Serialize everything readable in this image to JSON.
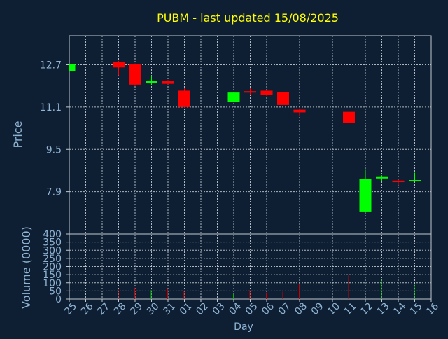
{
  "chart_data": {
    "type": "candlestick",
    "title": "PUBM - last updated 15/08/2025",
    "price_panel": {
      "ylabel": "Price",
      "ylim": [
        6.3,
        13.8
      ],
      "yticks": [
        7.9,
        9.5,
        11.1,
        12.7
      ],
      "ytick_labels": [
        "7.9",
        "9.5",
        "11.1",
        "12.7"
      ],
      "grid": true
    },
    "volume_panel": {
      "ylabel": "Volume (0000)",
      "ylim": [
        0,
        400
      ],
      "yticks": [
        0,
        50,
        100,
        150,
        200,
        250,
        300,
        350,
        400
      ],
      "ytick_labels": [
        "0",
        "50",
        "100",
        "150",
        "200",
        "250",
        "300",
        "350",
        "400"
      ],
      "grid": true
    },
    "xlabel": "Day",
    "x_labels": [
      "25",
      "26",
      "27",
      "28",
      "29",
      "30",
      "31",
      "01",
      "02",
      "03",
      "04",
      "05",
      "06",
      "07",
      "08",
      "09",
      "10",
      "11",
      "12",
      "13",
      "14",
      "15",
      "16"
    ],
    "candles": [
      {
        "day": "25",
        "open": 12.45,
        "close": 12.72,
        "high": 12.72,
        "low": 12.45,
        "volume": 0
      },
      {
        "day": "28",
        "open": 12.82,
        "close": 12.6,
        "high": 12.85,
        "low": 12.3,
        "volume": 60
      },
      {
        "day": "29",
        "open": 12.72,
        "close": 11.95,
        "high": 12.75,
        "low": 11.9,
        "volume": 70
      },
      {
        "day": "30",
        "open": 12.0,
        "close": 12.1,
        "high": 12.3,
        "low": 11.95,
        "volume": 55
      },
      {
        "day": "31",
        "open": 12.1,
        "close": 11.98,
        "high": 12.12,
        "low": 11.95,
        "volume": 65
      },
      {
        "day": "01",
        "open": 11.72,
        "close": 11.1,
        "high": 11.82,
        "low": 11.1,
        "volume": 50
      },
      {
        "day": "04",
        "open": 11.3,
        "close": 11.65,
        "high": 11.68,
        "low": 11.28,
        "volume": 30
      },
      {
        "day": "05",
        "open": 11.7,
        "close": 11.65,
        "high": 11.82,
        "low": 11.55,
        "volume": 55
      },
      {
        "day": "06",
        "open": 11.72,
        "close": 11.55,
        "high": 11.75,
        "low": 11.52,
        "volume": 40
      },
      {
        "day": "07",
        "open": 11.68,
        "close": 11.18,
        "high": 11.7,
        "low": 11.05,
        "volume": 45
      },
      {
        "day": "08",
        "open": 11.0,
        "close": 10.9,
        "high": 11.05,
        "low": 10.75,
        "volume": 90
      },
      {
        "day": "11",
        "open": 10.92,
        "close": 10.5,
        "high": 10.95,
        "low": 10.3,
        "volume": 145
      },
      {
        "day": "12",
        "open": 7.15,
        "close": 8.38,
        "high": 8.75,
        "low": 7.1,
        "volume": 380
      },
      {
        "day": "13",
        "open": 8.4,
        "close": 8.48,
        "high": 8.52,
        "low": 8.3,
        "volume": 120
      },
      {
        "day": "14",
        "open": 8.32,
        "close": 8.26,
        "high": 8.35,
        "low": 8.15,
        "volume": 115
      },
      {
        "day": "15",
        "open": 8.3,
        "close": 8.34,
        "high": 8.62,
        "low": 8.28,
        "volume": 90
      }
    ],
    "grid": true,
    "legend": "none"
  },
  "colors": {
    "background": "#0f1f33",
    "title": "#ffff00",
    "axis_text": "#8fb4d4",
    "axis_line": "#c0c8d0",
    "grid": "#c0c8d0",
    "up": "#00ff00",
    "down": "#ff0000",
    "volume_up": "#00b400",
    "volume_down": "#c80000"
  }
}
